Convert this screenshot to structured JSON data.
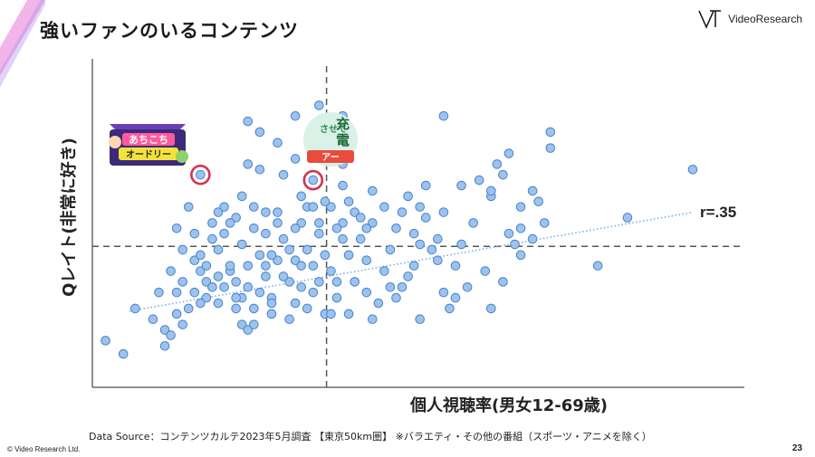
{
  "page": {
    "title": "強いファンのいるコンテンツ",
    "logo_text": "VideoResearch",
    "source": "Data Source：コンテンツカルテ2023年5月調査 【東京50km圏】 ※バラエティ・その他の番組（スポーツ・アニメを除く）",
    "copyright": "© Video Research Ltd.",
    "page_number": "23"
  },
  "colors": {
    "point_fill": "#9cc3ee",
    "point_stroke": "#4a82c9",
    "highlight": "#d3334e",
    "trend": "#7aaee0",
    "accent_stripe": "#e879d7"
  },
  "thumbnails": [
    {
      "name": "achikochi-autory-logo",
      "text": "あちこち\nオードリー"
    },
    {
      "name": "sasete-tenbatsu-logo",
      "text": "させて\n電\nアー"
    }
  ],
  "chart_data": {
    "type": "scatter",
    "xlabel": "個人視聴率(男女12-69歳)",
    "ylabel": "Qレイト(非常に好き)",
    "annotation": "r=.35",
    "reference_lines": [
      "vertical-mean",
      "horizontal-mean"
    ],
    "trendline": {
      "style": "dotted",
      "x": [
        0.5,
        10.0
      ],
      "y": [
        0.95,
        2.8
      ]
    },
    "highlighted_points": [
      [
        1.7,
        3.5
      ],
      [
        3.6,
        3.4
      ]
    ],
    "xlim": [
      0,
      10
    ],
    "ylim": [
      0,
      5.5
    ],
    "points": [
      [
        0.1,
        0.4
      ],
      [
        0.4,
        0.15
      ],
      [
        0.6,
        1.0
      ],
      [
        0.9,
        0.8
      ],
      [
        1.1,
        0.6
      ],
      [
        1.0,
        1.3
      ],
      [
        1.2,
        1.7
      ],
      [
        1.3,
        1.3
      ],
      [
        1.4,
        1.5
      ],
      [
        1.3,
        2.5
      ],
      [
        1.5,
        2.9
      ],
      [
        1.4,
        2.1
      ],
      [
        1.6,
        2.4
      ],
      [
        1.6,
        1.9
      ],
      [
        1.7,
        1.7
      ],
      [
        1.8,
        1.8
      ],
      [
        1.8,
        1.5
      ],
      [
        1.9,
        2.3
      ],
      [
        2.0,
        2.1
      ],
      [
        2.1,
        1.4
      ],
      [
        2.2,
        1.7
      ],
      [
        2.3,
        2.7
      ],
      [
        2.3,
        1.0
      ],
      [
        2.4,
        0.7
      ],
      [
        2.5,
        0.6
      ],
      [
        2.5,
        1.8
      ],
      [
        2.0,
        2.8
      ],
      [
        2.2,
        2.6
      ],
      [
        2.4,
        2.2
      ],
      [
        2.6,
        2.5
      ],
      [
        2.7,
        2.0
      ],
      [
        2.8,
        1.6
      ],
      [
        2.9,
        1.2
      ],
      [
        3.0,
        2.8
      ],
      [
        3.1,
        2.3
      ],
      [
        3.2,
        1.5
      ],
      [
        3.3,
        1.9
      ],
      [
        3.3,
        1.1
      ],
      [
        3.4,
        2.6
      ],
      [
        3.5,
        2.1
      ],
      [
        3.6,
        1.3
      ],
      [
        3.7,
        2.4
      ],
      [
        3.8,
        0.9
      ],
      [
        3.9,
        1.7
      ],
      [
        4.0,
        1.5
      ],
      [
        4.0,
        1.2
      ],
      [
        4.1,
        2.3
      ],
      [
        4.2,
        2.0
      ],
      [
        3.6,
        1.8
      ],
      [
        3.5,
        1.0
      ],
      [
        3.8,
        2.0
      ],
      [
        3.9,
        2.9
      ],
      [
        3.7,
        2.6
      ],
      [
        3.4,
        1.8
      ],
      [
        3.2,
        2.1
      ],
      [
        3.0,
        1.9
      ],
      [
        2.9,
        2.0
      ],
      [
        2.8,
        2.4
      ],
      [
        2.7,
        1.3
      ],
      [
        2.6,
        1.0
      ],
      [
        2.5,
        1.4
      ],
      [
        2.4,
        1.2
      ],
      [
        2.3,
        1.5
      ],
      [
        2.2,
        1.8
      ],
      [
        2.1,
        2.4
      ],
      [
        2.0,
        1.6
      ],
      [
        1.9,
        1.4
      ],
      [
        1.8,
        1.2
      ],
      [
        1.7,
        1.1
      ],
      [
        1.5,
        1.0
      ],
      [
        1.4,
        0.7
      ],
      [
        1.2,
        0.5
      ],
      [
        1.1,
        0.3
      ],
      [
        1.3,
        0.9
      ],
      [
        1.6,
        1.3
      ],
      [
        1.9,
        2.6
      ],
      [
        2.1,
        2.9
      ],
      [
        2.4,
        3.1
      ],
      [
        2.6,
        2.9
      ],
      [
        2.8,
        2.8
      ],
      [
        3.0,
        2.6
      ],
      [
        3.3,
        2.5
      ],
      [
        3.5,
        2.9
      ],
      [
        2.8,
        1.8
      ],
      [
        3.1,
        1.6
      ],
      [
        3.4,
        1.4
      ],
      [
        3.2,
        0.8
      ],
      [
        2.9,
        0.9
      ],
      [
        2.6,
        0.7
      ],
      [
        2.3,
        1.2
      ],
      [
        2.0,
        1.1
      ],
      [
        1.7,
        2.0
      ],
      [
        2.5,
        3.7
      ],
      [
        2.7,
        3.6
      ],
      [
        3.3,
        3.8
      ],
      [
        4.1,
        3.7
      ],
      [
        4.6,
        3.2
      ],
      [
        4.8,
        2.9
      ],
      [
        4.6,
        2.6
      ],
      [
        4.4,
        2.3
      ],
      [
        4.5,
        1.9
      ],
      [
        4.3,
        1.5
      ],
      [
        4.5,
        1.3
      ],
      [
        4.7,
        1.1
      ],
      [
        4.8,
        1.7
      ],
      [
        4.9,
        2.1
      ],
      [
        5.0,
        2.5
      ],
      [
        5.1,
        2.8
      ],
      [
        5.2,
        3.1
      ],
      [
        5.3,
        2.4
      ],
      [
        5.2,
        1.6
      ],
      [
        5.4,
        2.9
      ],
      [
        5.5,
        2.7
      ],
      [
        5.6,
        2.1
      ],
      [
        5.7,
        1.9
      ],
      [
        5.8,
        1.3
      ],
      [
        5.9,
        1.0
      ],
      [
        5.8,
        2.8
      ],
      [
        5.5,
        3.3
      ],
      [
        6.1,
        2.2
      ],
      [
        6.3,
        2.6
      ],
      [
        6.5,
        1.7
      ],
      [
        6.6,
        3.1
      ],
      [
        6.0,
        1.2
      ],
      [
        5.0,
        1.2
      ],
      [
        4.2,
        0.9
      ],
      [
        4.6,
        0.8
      ],
      [
        5.4,
        0.8
      ],
      [
        4.1,
        3.3
      ],
      [
        4.2,
        3.0
      ],
      [
        4.3,
        2.8
      ],
      [
        4.4,
        2.7
      ],
      [
        4.5,
        2.5
      ],
      [
        4.1,
        2.6
      ],
      [
        4.9,
        1.4
      ],
      [
        5.3,
        1.8
      ],
      [
        6.0,
        1.8
      ],
      [
        6.1,
        3.3
      ],
      [
        6.4,
        3.4
      ],
      [
        6.9,
        2.4
      ],
      [
        7.0,
        2.2
      ],
      [
        7.1,
        2.0
      ],
      [
        7.3,
        3.2
      ],
      [
        7.4,
        3.0
      ],
      [
        7.5,
        2.6
      ],
      [
        7.1,
        2.5
      ],
      [
        6.8,
        3.5
      ],
      [
        7.6,
        4.3
      ],
      [
        7.6,
        4.0
      ],
      [
        8.4,
        1.8
      ],
      [
        8.9,
        2.7
      ],
      [
        10.0,
        3.6
      ],
      [
        4.1,
        4.6
      ],
      [
        4.1,
        4.3
      ],
      [
        5.8,
        4.6
      ],
      [
        4.2,
        3.9
      ],
      [
        6.7,
        3.7
      ],
      [
        6.6,
        3.2
      ],
      [
        6.9,
        3.9
      ],
      [
        7.3,
        2.3
      ],
      [
        7.1,
        2.9
      ],
      [
        6.8,
        1.5
      ],
      [
        6.6,
        1.0
      ],
      [
        6.2,
        1.4
      ],
      [
        5.7,
        2.3
      ],
      [
        5.4,
        2.2
      ],
      [
        5.1,
        1.4
      ],
      [
        3.7,
        1.5
      ],
      [
        3.9,
        0.9
      ],
      [
        4.0,
        2.5
      ],
      [
        3.8,
        3.0
      ],
      [
        3.6,
        2.9
      ],
      [
        3.4,
        3.1
      ],
      [
        3.1,
        3.5
      ],
      [
        1.7,
        3.4
      ],
      [
        2.7,
        4.3
      ],
      [
        3.3,
        4.6
      ],
      [
        2.5,
        4.5
      ],
      [
        3.7,
        4.8
      ],
      [
        3.0,
        4.1
      ],
      [
        2.9,
        1.1
      ]
    ]
  }
}
